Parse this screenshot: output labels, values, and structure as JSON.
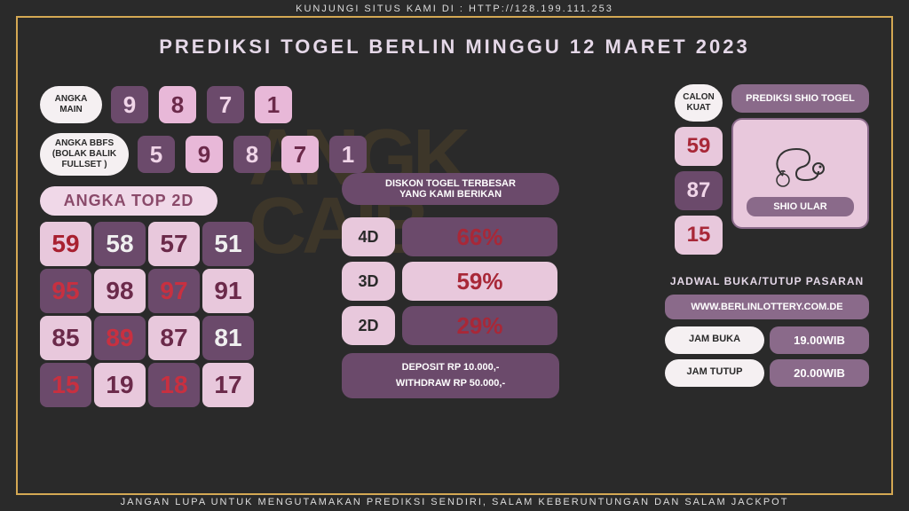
{
  "top_banner": "KUNJUNGI SITUS KAMI DI : HTTP://128.199.111.253",
  "bottom_banner": "JANGAN LUPA UNTUK MENGUTAMAKAN PREDIKSI SENDIRI, SALAM KEBERUNTUNGAN DAN SALAM JACKPOT",
  "title": "PREDIKSI TOGEL BERLIN MINGGU 12 MARET 2023",
  "angka_main": {
    "label": "ANGKA MAIN",
    "values": [
      "9",
      "8",
      "7",
      "1"
    ]
  },
  "angka_bbfs": {
    "label": "ANGKA BBFS (BOLAK BALIK FULLSET )",
    "values": [
      "5",
      "9",
      "8",
      "7",
      "1"
    ]
  },
  "top2d": {
    "title": "ANGKA TOP 2D",
    "cells": [
      {
        "v": "59",
        "style": "cell-light-red"
      },
      {
        "v": "58",
        "style": "cell-dark"
      },
      {
        "v": "57",
        "style": "cell-light"
      },
      {
        "v": "51",
        "style": "cell-dark"
      },
      {
        "v": "95",
        "style": "cell-dark-red"
      },
      {
        "v": "98",
        "style": "cell-light"
      },
      {
        "v": "97",
        "style": "cell-dark-red"
      },
      {
        "v": "91",
        "style": "cell-light"
      },
      {
        "v": "85",
        "style": "cell-light"
      },
      {
        "v": "89",
        "style": "cell-dark-red"
      },
      {
        "v": "87",
        "style": "cell-light"
      },
      {
        "v": "81",
        "style": "cell-dark"
      },
      {
        "v": "15",
        "style": "cell-dark-red"
      },
      {
        "v": "19",
        "style": "cell-light"
      },
      {
        "v": "18",
        "style": "cell-dark-red"
      },
      {
        "v": "17",
        "style": "cell-light"
      }
    ]
  },
  "diskon": {
    "title1": "DISKON TOGEL TERBESAR",
    "title2": "YANG KAMI BERIKAN",
    "rows": [
      {
        "label": "4D",
        "value": "66%",
        "style": "dv-dark"
      },
      {
        "label": "3D",
        "value": "59%",
        "style": "dv-light"
      },
      {
        "label": "2D",
        "value": "29%",
        "style": "dv-dark"
      }
    ],
    "deposit": "DEPOSIT RP 10.000,-",
    "withdraw": "WITHDRAW RP 50.000,-"
  },
  "calon": {
    "label": "CALON KUAT",
    "values": [
      {
        "v": "59",
        "style": "ball-light"
      },
      {
        "v": "87",
        "style": "ball-dark"
      },
      {
        "v": "15",
        "style": "ball-light"
      }
    ]
  },
  "shio": {
    "title": "PREDIKSI SHIO TOGEL",
    "caption": "SHIO ULAR"
  },
  "jadwal": {
    "title": "JADWAL BUKA/TUTUP PASARAN",
    "site": "WWW.BERLINLOTTERY.COM.DE",
    "buka_label": "JAM BUKA",
    "buka_value": "19.00WIB",
    "tutup_label": "JAM TUTUP",
    "tutup_value": "20.00WIB"
  },
  "watermark1": "ANGK",
  "watermark2": "CAIB",
  "colors": {
    "accent": "#d4a853",
    "purple_dark": "#6b4a6b",
    "pink_light": "#e8c8dc"
  }
}
